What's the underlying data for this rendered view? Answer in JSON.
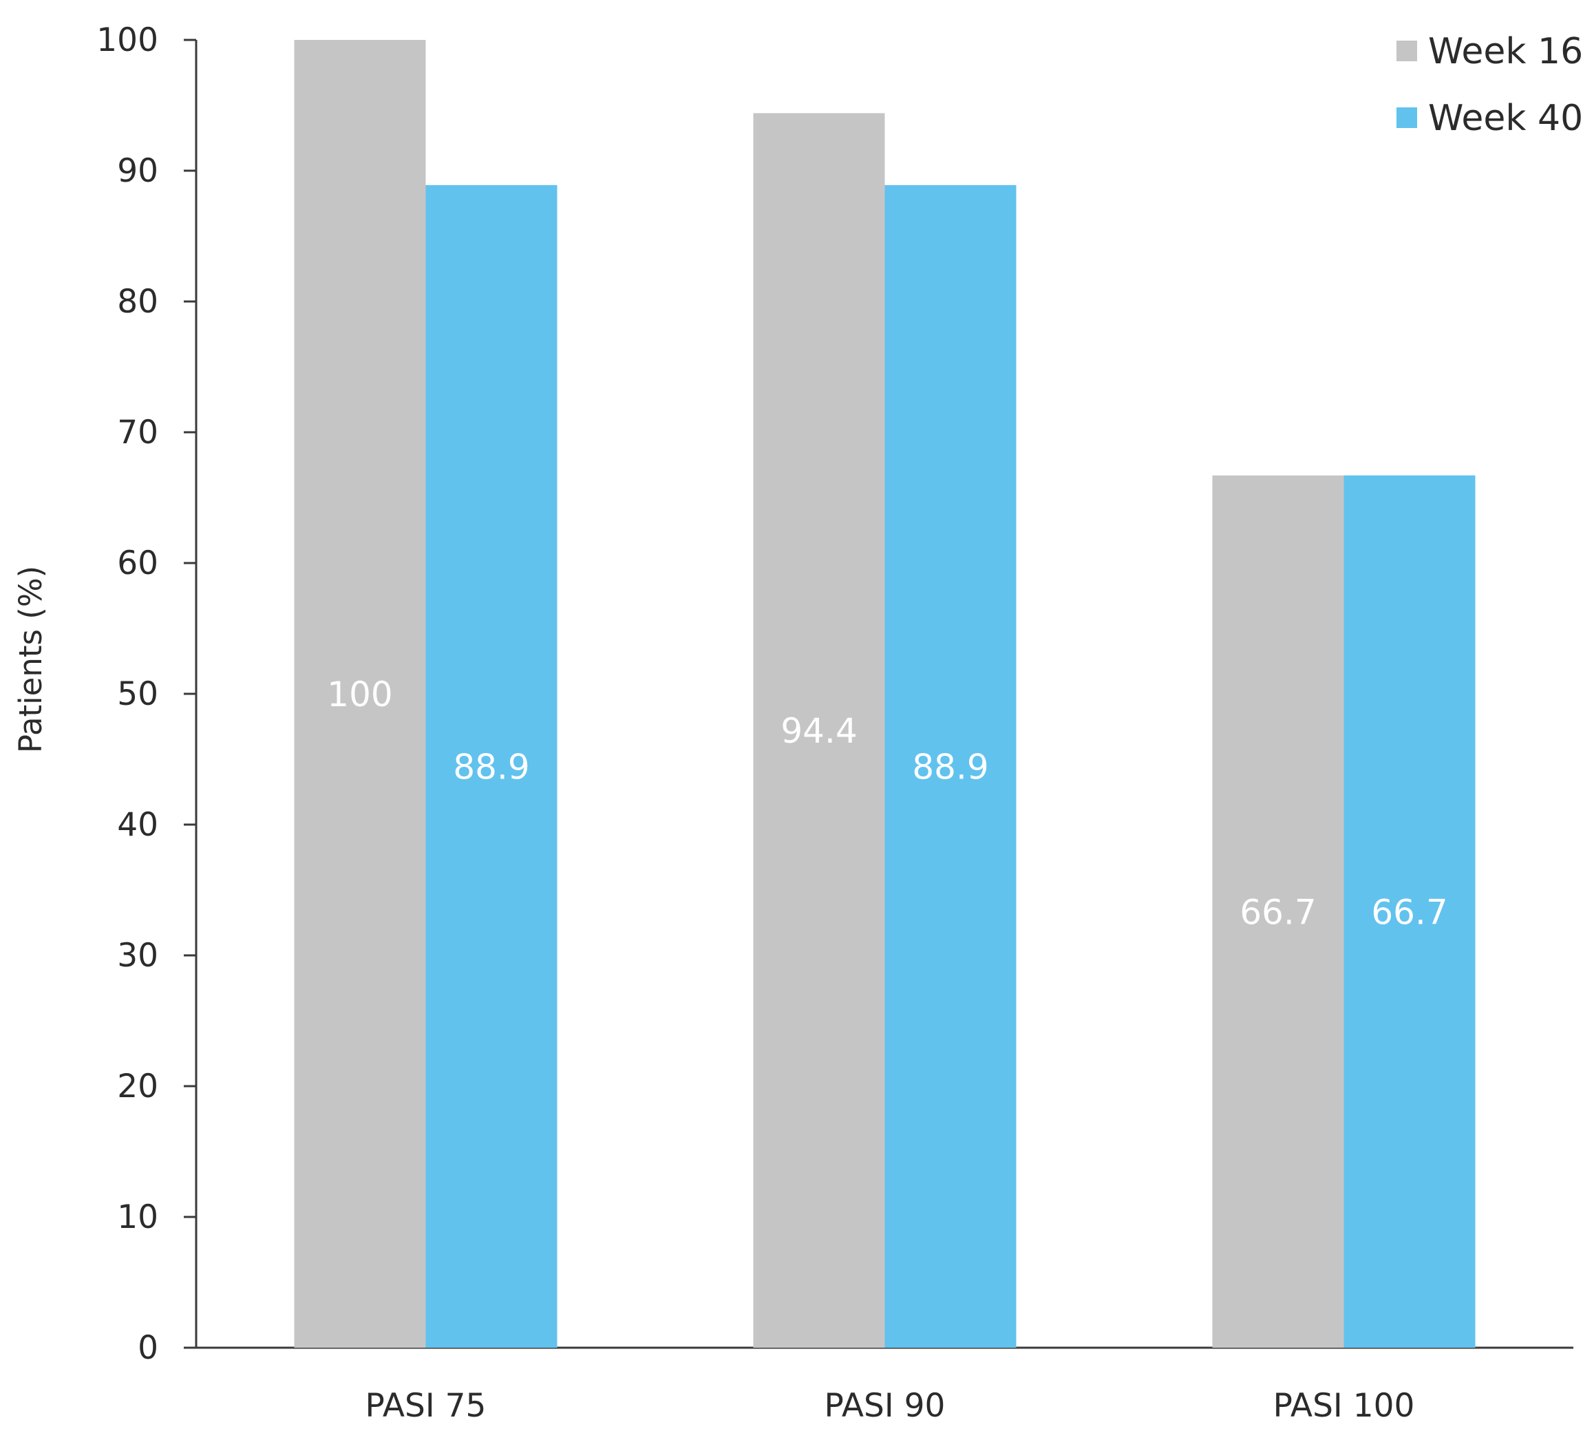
{
  "chart_data": {
    "type": "bar",
    "title": "",
    "xlabel": "",
    "ylabel": "Patients (%)",
    "ylim": [
      0,
      100
    ],
    "yticks": [
      0,
      10,
      20,
      30,
      40,
      50,
      60,
      70,
      80,
      90,
      100
    ],
    "categories": [
      "PASI 75",
      "PASI 90",
      "PASI 100"
    ],
    "series": [
      {
        "name": "Week 16",
        "color": "#c5c5c5",
        "values": [
          100,
          94.4,
          66.7
        ],
        "labels": [
          "100",
          "94.4",
          "66.7"
        ]
      },
      {
        "name": "Week 40",
        "color": "#61c2ee",
        "values": [
          88.9,
          88.9,
          66.7
        ],
        "labels": [
          "88.9",
          "88.9",
          "66.7"
        ]
      }
    ],
    "grid": false,
    "legend": "top-right",
    "data_labels": "inside-bar-center"
  }
}
